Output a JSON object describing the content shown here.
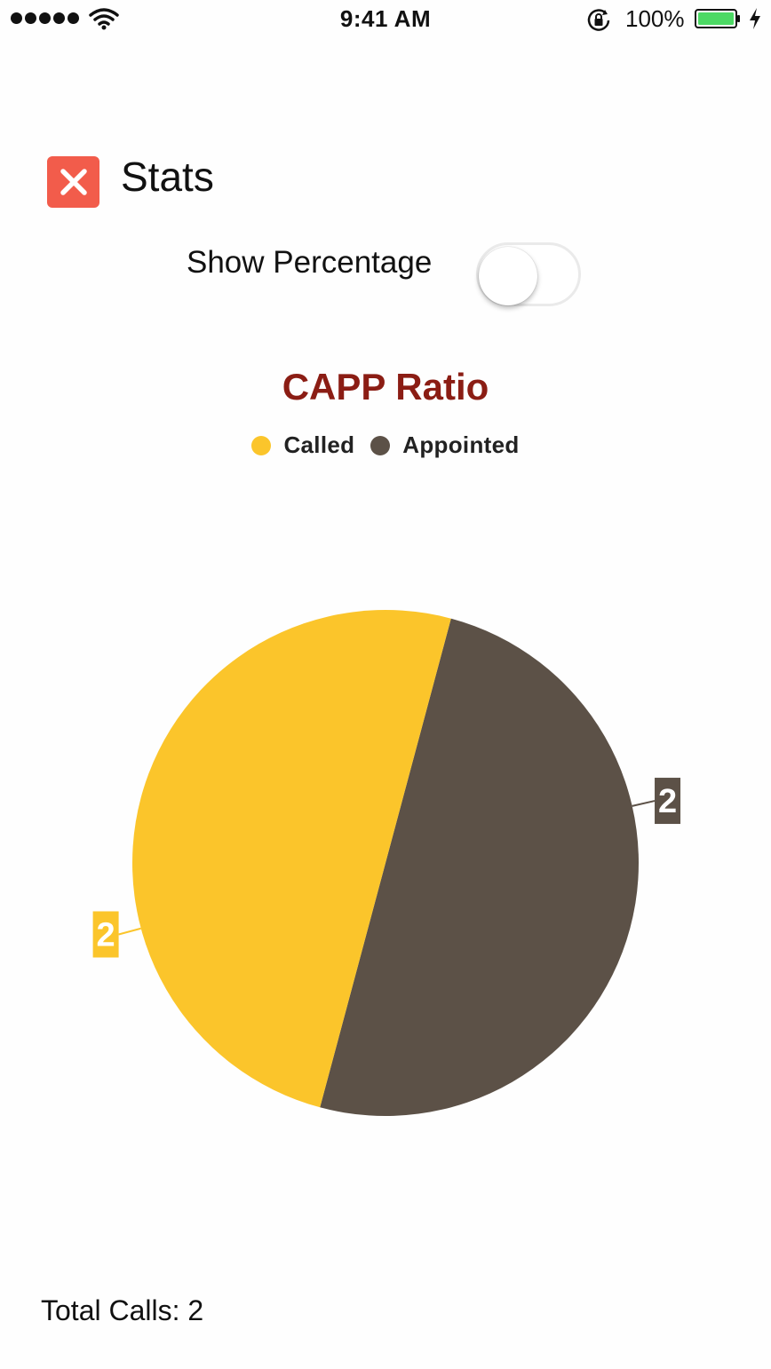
{
  "status_bar": {
    "time": "9:41 AM",
    "battery_percent": "100%",
    "signal_icon": "signal-dots-icon",
    "wifi_icon": "wifi-icon",
    "lock_icon": "rotation-lock-icon",
    "battery_icon": "battery-icon",
    "charging_icon": "charging-bolt-icon"
  },
  "header": {
    "title": "Stats",
    "close_icon": "close-icon",
    "close_color": "#f25c4b"
  },
  "toggle": {
    "label": "Show Percentage",
    "on": false
  },
  "chart_data": {
    "type": "pie",
    "title": "CAPP Ratio",
    "title_color": "#8b1d14",
    "legend_position": "top-center",
    "series": [
      {
        "name": "Called",
        "value": 2,
        "label": "2",
        "color": "#fbc52b"
      },
      {
        "name": "Appointed",
        "value": 2,
        "label": "2",
        "color": "#5c5147"
      }
    ]
  },
  "footer": {
    "total_calls": "Total Calls: 2"
  }
}
